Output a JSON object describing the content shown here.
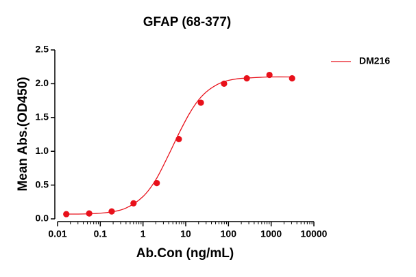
{
  "chart_data": {
    "type": "scatter-fit",
    "title": "GFAP (68-377)",
    "x_label": "Ab.Con (ng/mL)",
    "y_label": "Mean Abs.(OD450)",
    "xscale": "log",
    "xlim": [
      0.01,
      10000
    ],
    "xticks": [
      0.01,
      0.1,
      1,
      10,
      100,
      1000,
      10000
    ],
    "ylim": [
      0,
      2.5
    ],
    "yticks": [
      {
        "value": 0,
        "label": "0.0"
      },
      0.5,
      {
        "value": 1,
        "label": "1.0"
      },
      1.5,
      {
        "value": 2,
        "label": "2.0"
      },
      2.5
    ],
    "legend": "top-right",
    "series": [
      {
        "name": "DM216",
        "color": "#e8101a",
        "x": [
          0.016,
          0.055,
          0.185,
          0.6,
          2.1,
          6.9,
          22.6,
          79,
          269,
          912,
          3090
        ],
        "values": [
          0.07,
          0.08,
          0.11,
          0.23,
          0.53,
          1.18,
          1.72,
          2.0,
          2.08,
          2.13,
          2.08
        ],
        "curve_x": [
          0.016,
          0.05,
          0.15,
          0.4,
          1,
          2,
          4,
          7,
          12,
          20,
          35,
          70,
          150,
          400,
          1000,
          3090
        ],
        "curve_values": [
          0.07,
          0.075,
          0.095,
          0.16,
          0.33,
          0.58,
          0.95,
          1.27,
          1.55,
          1.76,
          1.91,
          2.02,
          2.07,
          2.09,
          2.1,
          2.1
        ]
      }
    ]
  }
}
